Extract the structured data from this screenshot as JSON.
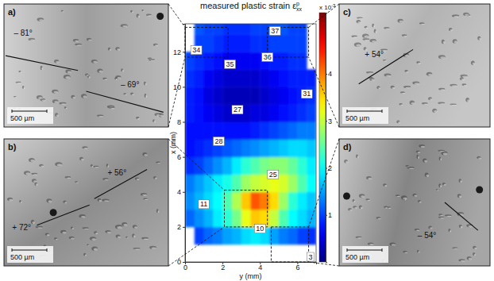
{
  "chart_data": {
    "type": "heatmap",
    "title": {
      "text": "measured plastic strain ε",
      "sup": "p",
      "sub": "xx"
    },
    "xlabel": "y (mm)",
    "ylabel": "x (mm)",
    "xlim": [
      0,
      7
    ],
    "xticks": [
      0,
      2,
      4,
      6
    ],
    "ylim": [
      0,
      13.6
    ],
    "yticks": [
      0,
      2,
      4,
      6,
      8,
      10,
      12
    ],
    "x": [
      0.25,
      0.75,
      1.25,
      1.75,
      2.25,
      2.75,
      3.25,
      3.75,
      4.25,
      4.75,
      5.25,
      5.75,
      6.25,
      6.75
    ],
    "y": [
      0.5,
      1.5,
      2.5,
      3.5,
      4.5,
      5.5,
      6.5,
      7.5,
      8.5,
      9.5,
      10.5,
      11.5,
      12.5,
      13.5
    ],
    "z": [
      [
        null,
        null,
        null,
        null,
        null,
        null,
        null,
        null,
        null,
        null,
        null,
        null,
        null,
        null
      ],
      [
        null,
        1.0,
        1.2,
        1.3,
        1.5,
        1.6,
        1.8,
        1.9,
        1.8,
        1.5,
        1.3,
        1.2,
        1.0,
        0.9
      ],
      [
        1.2,
        1.4,
        1.6,
        1.9,
        2.2,
        2.6,
        3.2,
        3.6,
        3.5,
        3.0,
        2.4,
        2.0,
        1.8,
        1.6
      ],
      [
        1.4,
        1.6,
        1.8,
        2.0,
        2.4,
        2.9,
        3.6,
        4.2,
        4.0,
        3.5,
        2.8,
        2.2,
        1.9,
        1.7
      ],
      [
        1.3,
        1.5,
        1.7,
        1.9,
        2.1,
        2.4,
        2.8,
        3.0,
        3.1,
        3.2,
        3.1,
        2.8,
        2.4,
        2.0
      ],
      [
        0.9,
        1.0,
        1.2,
        1.4,
        1.6,
        1.9,
        2.2,
        2.4,
        2.6,
        2.7,
        2.7,
        2.5,
        2.2,
        1.9
      ],
      [
        0.7,
        0.8,
        0.9,
        1.0,
        1.1,
        1.2,
        1.3,
        1.4,
        1.5,
        1.6,
        1.7,
        1.8,
        1.8,
        1.7
      ],
      [
        0.7,
        0.7,
        0.7,
        0.7,
        0.7,
        0.7,
        0.7,
        0.8,
        0.9,
        1.0,
        1.1,
        1.2,
        1.3,
        1.3
      ],
      [
        0.8,
        0.7,
        0.6,
        0.5,
        0.4,
        0.4,
        0.4,
        0.5,
        0.5,
        0.6,
        0.7,
        0.8,
        0.9,
        1.0
      ],
      [
        0.8,
        0.7,
        0.5,
        0.4,
        0.3,
        0.3,
        0.3,
        0.3,
        0.4,
        0.5,
        0.6,
        0.7,
        0.8,
        0.9
      ],
      [
        0.9,
        0.8,
        0.6,
        0.5,
        0.4,
        0.4,
        0.4,
        0.4,
        0.5,
        0.6,
        0.7,
        0.8,
        0.8,
        0.8
      ],
      [
        1.0,
        0.9,
        0.8,
        0.7,
        0.6,
        0.6,
        0.6,
        0.6,
        0.7,
        0.8,
        0.8,
        0.9,
        0.9,
        null
      ],
      [
        null,
        1.0,
        1.0,
        0.9,
        0.8,
        0.8,
        0.8,
        0.9,
        0.9,
        1.0,
        1.0,
        1.0,
        1.0,
        null
      ],
      [
        null,
        1.1,
        1.0,
        1.0,
        0.9,
        0.9,
        0.9,
        1.0,
        1.0,
        1.1,
        1.1,
        1.0,
        1.0,
        null
      ]
    ],
    "colorbar": {
      "lim": [
        0,
        5.3
      ],
      "ticks": [
        1,
        2,
        3,
        4
      ],
      "label": {
        "text": "x 10",
        "sup": "-3"
      }
    },
    "annotations": [
      {
        "text": "34",
        "x": 0.6,
        "y": 12.1
      },
      {
        "text": "35",
        "x": 2.4,
        "y": 11.3
      },
      {
        "text": "37",
        "x": 4.8,
        "y": 13.2
      },
      {
        "text": "36",
        "x": 4.4,
        "y": 11.7
      },
      {
        "text": "31",
        "x": 6.5,
        "y": 9.6
      },
      {
        "text": "27",
        "x": 2.8,
        "y": 8.7
      },
      {
        "text": "28",
        "x": 1.8,
        "y": 6.9
      },
      {
        "text": "25",
        "x": 4.7,
        "y": 5.0
      },
      {
        "text": "11",
        "x": 1.0,
        "y": 3.3
      },
      {
        "text": "10",
        "x": 4.0,
        "y": 1.9
      },
      {
        "text": "3",
        "x": 6.7,
        "y": 0.3
      }
    ]
  },
  "panels": [
    {
      "label": "a)",
      "angles": [
        "– 81°",
        "– 69°"
      ],
      "scale_bar": "500 µm",
      "region": {
        "x": [
          0,
          2.3
        ],
        "y": [
          11.7,
          13.4
        ]
      }
    },
    {
      "label": "b)",
      "angles": [
        "+ 56°",
        "+ 72°"
      ],
      "scale_bar": "500 µm",
      "region": {
        "x": [
          2.1,
          4.4
        ],
        "y": [
          2.0,
          4.1
        ]
      }
    },
    {
      "label": "c)",
      "angles": [
        "+ 54°"
      ],
      "scale_bar": "500 µm",
      "region": {
        "x": [
          4.4,
          6.6
        ],
        "y": [
          11.7,
          13.4
        ]
      }
    },
    {
      "label": "d)",
      "angles": [
        "– 54°"
      ],
      "scale_bar": "500 µm",
      "region": {
        "x": [
          4.6,
          6.6
        ],
        "y": [
          0,
          2.0
        ]
      }
    }
  ]
}
